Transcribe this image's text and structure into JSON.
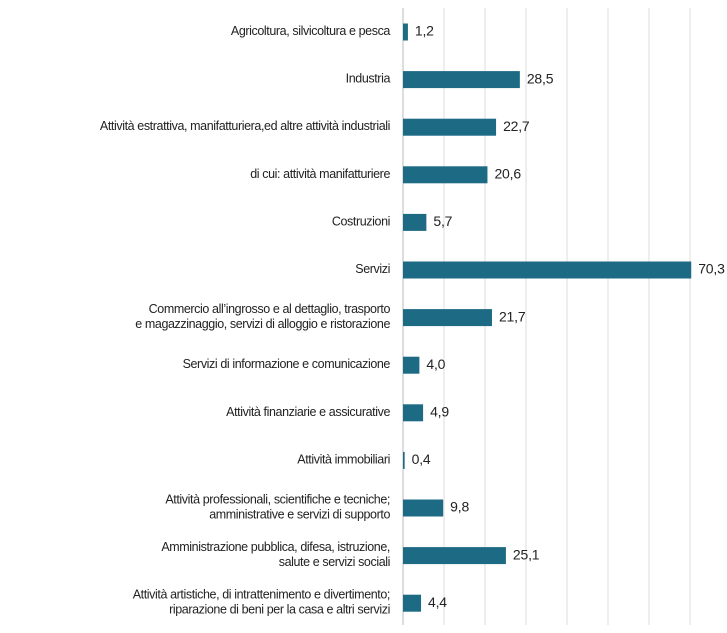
{
  "chart_data": {
    "type": "hbar",
    "categories": [
      [
        "Agricoltura, silvicoltura e pesca"
      ],
      [
        "Industria"
      ],
      [
        "Attività estrattiva, manifatturiera,ed altre attività industriali"
      ],
      [
        "di cui: attività manifatturiere"
      ],
      [
        "Costruzioni"
      ],
      [
        "Servizi"
      ],
      [
        "Commercio all’ingrosso e al dettaglio, trasporto",
        "e magazzinaggio, servizi di alloggio e ristorazione"
      ],
      [
        "Servizi di informazione e comunicazione"
      ],
      [
        "Attività finanziarie e assicurative"
      ],
      [
        "Attività immobiliari"
      ],
      [
        "Attività professionali, scientifiche e tecniche;",
        "amministrative e servizi di supporto"
      ],
      [
        "Amministrazione pubblica, difesa, istruzione,",
        "salute e servizi sociali"
      ],
      [
        "Attività artistiche, di intrattenimento e divertimento;",
        "riparazione di beni per la casa e altri servizi"
      ]
    ],
    "values": [
      1.2,
      28.5,
      22.7,
      20.6,
      5.7,
      70.3,
      21.7,
      4.0,
      4.9,
      0.4,
      9.8,
      25.1,
      4.4
    ],
    "value_labels": [
      "1,2",
      "28,5",
      "22,7",
      "20,6",
      "5,7",
      "70,3",
      "21,7",
      "4,0",
      "4,9",
      "0,4",
      "9,8",
      "25,1",
      "4,4"
    ],
    "color": "#1d6a84",
    "xlim": [
      0,
      70
    ],
    "xticks": [
      0,
      10,
      20,
      30,
      40,
      50,
      60,
      70
    ],
    "grid": true
  }
}
